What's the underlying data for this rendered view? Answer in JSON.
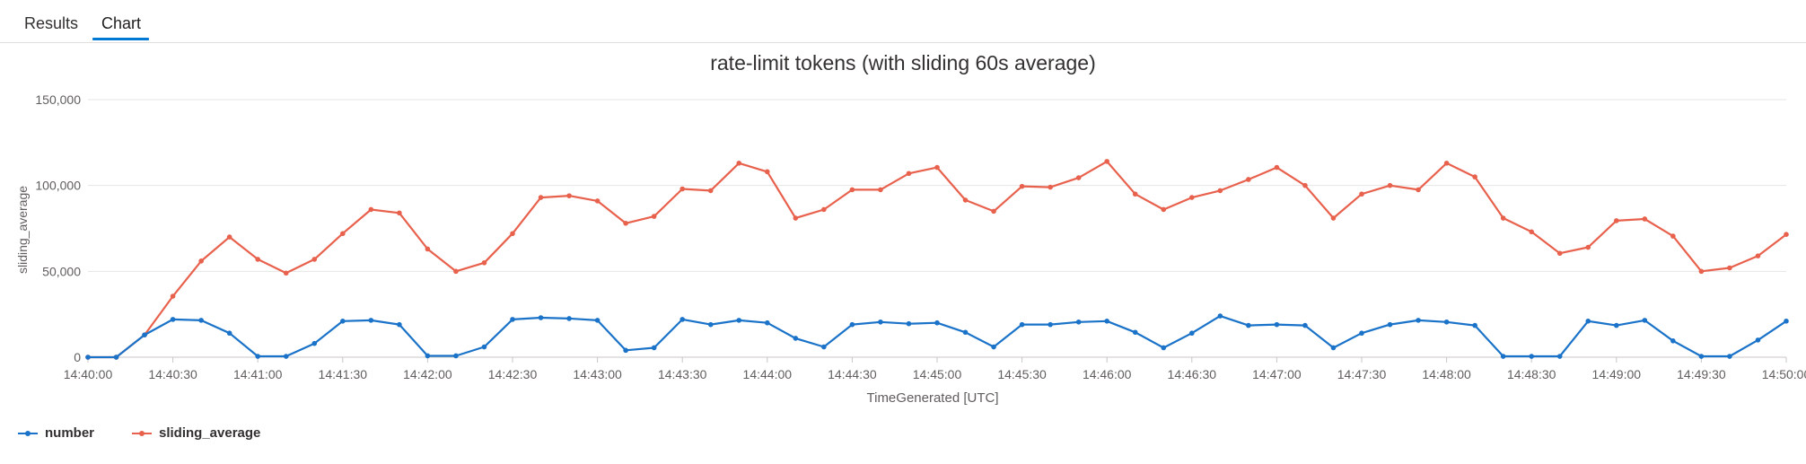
{
  "tabs": [
    {
      "label": "Results",
      "active": false
    },
    {
      "label": "Chart",
      "active": true
    }
  ],
  "colors": {
    "accent": "#0078d4",
    "number": "#1a73c8",
    "sliding_average": "#e8614d",
    "grid": "#e6e6e6",
    "axis_text": "#605e5c"
  },
  "chart_data": {
    "type": "line",
    "title": "rate-limit tokens (with sliding 60s average)",
    "xlabel": "TimeGenerated [UTC]",
    "ylabel": "sliding_average",
    "ylim": [
      0,
      150000
    ],
    "yticks": [
      0,
      50000,
      100000,
      150000
    ],
    "ytick_labels": [
      "0",
      "50,000",
      "100,000",
      "150,000"
    ],
    "xlim": [
      "14:40:00",
      "14:50:00"
    ],
    "xtick_labels": [
      "14:40:00",
      "14:40:30",
      "14:41:00",
      "14:41:30",
      "14:42:00",
      "14:42:30",
      "14:43:00",
      "14:43:30",
      "14:44:00",
      "14:44:30",
      "14:45:00",
      "14:45:30",
      "14:46:00",
      "14:46:30",
      "14:47:00",
      "14:47:30",
      "14:48:00",
      "14:48:30",
      "14:49:00",
      "14:49:30",
      "14:50:00"
    ],
    "grid": true,
    "legend": "bottom-left",
    "x": [
      "14:40:00",
      "14:40:10",
      "14:40:20",
      "14:40:30",
      "14:40:40",
      "14:40:50",
      "14:41:00",
      "14:41:10",
      "14:41:20",
      "14:41:30",
      "14:41:40",
      "14:41:50",
      "14:42:00",
      "14:42:10",
      "14:42:20",
      "14:42:30",
      "14:42:40",
      "14:42:50",
      "14:43:00",
      "14:43:10",
      "14:43:20",
      "14:43:30",
      "14:43:40",
      "14:43:50",
      "14:44:00",
      "14:44:10",
      "14:44:20",
      "14:44:30",
      "14:44:40",
      "14:44:50",
      "14:45:00",
      "14:45:10",
      "14:45:20",
      "14:45:30",
      "14:45:40",
      "14:45:50",
      "14:46:00",
      "14:46:10",
      "14:46:20",
      "14:46:30",
      "14:46:40",
      "14:46:50",
      "14:47:00",
      "14:47:10",
      "14:47:20",
      "14:47:30",
      "14:47:40",
      "14:47:50",
      "14:48:00",
      "14:48:10",
      "14:48:20",
      "14:48:30",
      "14:48:40",
      "14:48:50",
      "14:49:00",
      "14:49:10",
      "14:49:20",
      "14:49:30",
      "14:49:40",
      "14:49:50",
      "14:50:00"
    ],
    "series": [
      {
        "name": "number",
        "values": [
          0,
          0,
          13000,
          22000,
          21500,
          14000,
          500,
          500,
          8000,
          21000,
          21500,
          19000,
          800,
          800,
          6000,
          22000,
          23000,
          22500,
          21500,
          4000,
          5500,
          22000,
          19000,
          21500,
          20000,
          11000,
          6000,
          19000,
          20500,
          19500,
          20000,
          14500,
          6000,
          19000,
          19000,
          20500,
          21000,
          14500,
          5500,
          14000,
          24000,
          18500,
          19000,
          18500,
          5500,
          14000,
          19000,
          21500,
          20500,
          18500,
          500,
          500,
          500,
          21000,
          18500,
          21500,
          9500,
          500,
          500,
          10000,
          21000
        ]
      },
      {
        "name": "sliding_average",
        "values": [
          0,
          0,
          13000,
          35500,
          56000,
          70000,
          57000,
          49000,
          57000,
          72000,
          86000,
          84000,
          63000,
          50000,
          55000,
          72000,
          93000,
          94000,
          91000,
          78000,
          82000,
          98000,
          97000,
          113000,
          108000,
          81000,
          86000,
          97500,
          97500,
          107000,
          110500,
          91500,
          85000,
          99500,
          99000,
          104500,
          114000,
          95000,
          86000,
          93000,
          97000,
          103500,
          110500,
          100000,
          81000,
          95000,
          100000,
          97500,
          113000,
          105000,
          81000,
          73000,
          60500,
          64000,
          79500,
          80500,
          70500,
          50000,
          52000,
          59000,
          71500
        ]
      }
    ]
  }
}
